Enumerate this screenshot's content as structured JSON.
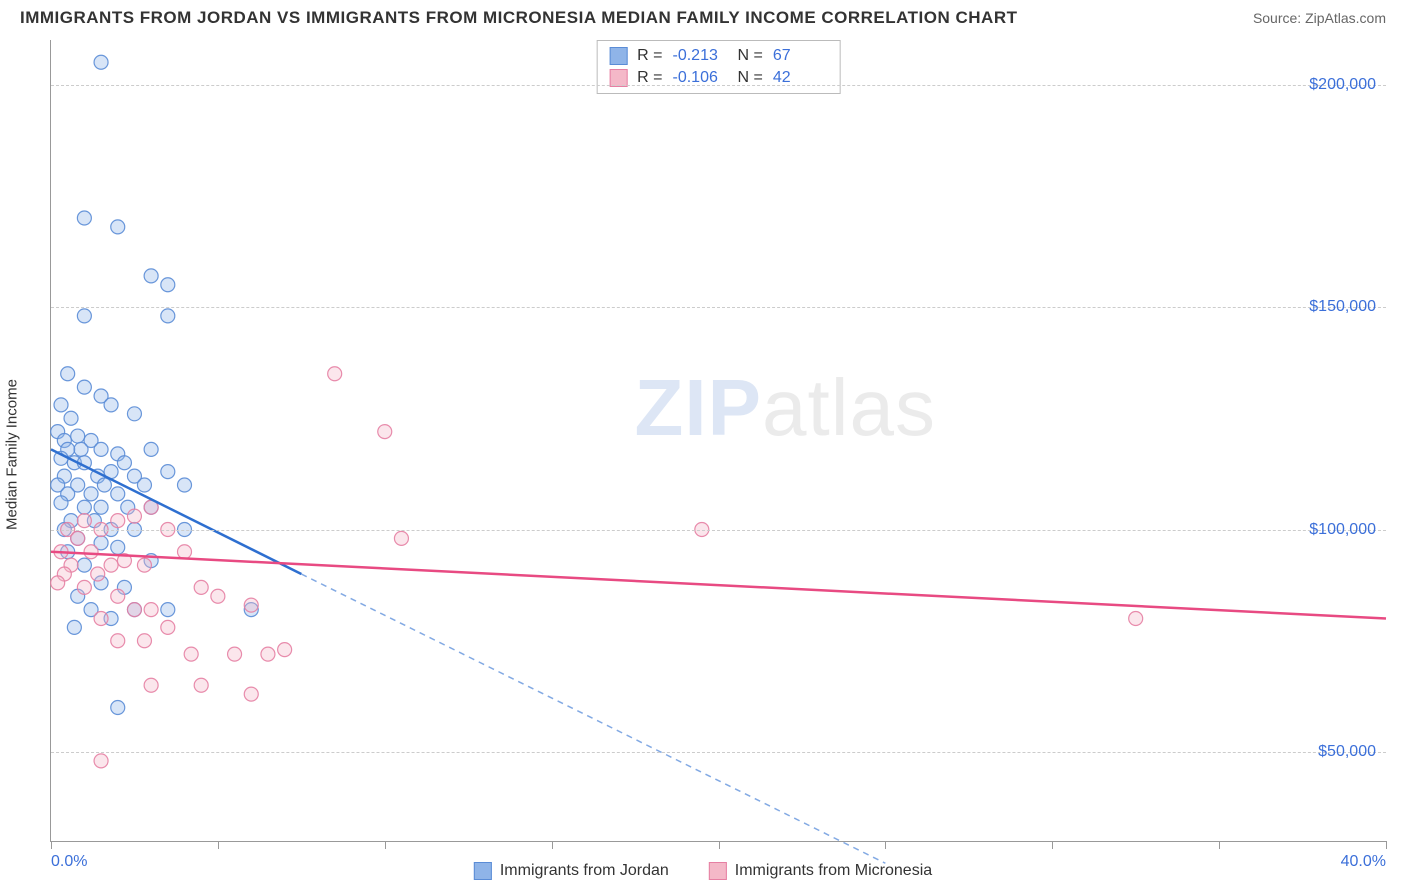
{
  "title": "IMMIGRANTS FROM JORDAN VS IMMIGRANTS FROM MICRONESIA MEDIAN FAMILY INCOME CORRELATION CHART",
  "source_label": "Source: ",
  "source_value": "ZipAtlas.com",
  "y_axis_label": "Median Family Income",
  "watermark_zip": "ZIP",
  "watermark_atlas": "atlas",
  "chart": {
    "type": "scatter",
    "xlim": [
      0,
      40
    ],
    "ylim": [
      30000,
      210000
    ],
    "x_tick_positions": [
      0,
      5,
      10,
      15,
      20,
      25,
      30,
      35,
      40
    ],
    "x_tick_labels_shown": {
      "0": "0.0%",
      "40": "40.0%"
    },
    "y_ticks": [
      50000,
      100000,
      150000,
      200000
    ],
    "y_tick_labels": [
      "$50,000",
      "$100,000",
      "$150,000",
      "$200,000"
    ],
    "grid_color": "#cccccc",
    "axis_color": "#999999",
    "background_color": "#ffffff",
    "tick_label_color": "#3b6fd9",
    "marker_radius": 7,
    "marker_fill_opacity": 0.35,
    "marker_stroke_opacity": 0.9,
    "line_width": 2.5
  },
  "series": [
    {
      "key": "jordan",
      "label": "Immigrants from Jordan",
      "color_fill": "#8fb4e8",
      "color_stroke": "#5a8cd6",
      "line_color": "#2e6fd0",
      "R": "-0.213",
      "N": "67",
      "trend": {
        "x1": 0,
        "y1": 118000,
        "x2": 7.5,
        "y2": 90000,
        "x2_ext": 25,
        "y2_ext": 25000
      },
      "points": [
        [
          1.5,
          205000
        ],
        [
          1.0,
          170000
        ],
        [
          2.0,
          168000
        ],
        [
          3.0,
          157000
        ],
        [
          3.5,
          155000
        ],
        [
          1.0,
          148000
        ],
        [
          3.5,
          148000
        ],
        [
          0.5,
          135000
        ],
        [
          1.0,
          132000
        ],
        [
          1.5,
          130000
        ],
        [
          0.3,
          128000
        ],
        [
          1.8,
          128000
        ],
        [
          2.5,
          126000
        ],
        [
          0.6,
          125000
        ],
        [
          0.2,
          122000
        ],
        [
          0.8,
          121000
        ],
        [
          0.4,
          120000
        ],
        [
          1.2,
          120000
        ],
        [
          0.5,
          118000
        ],
        [
          0.9,
          118000
        ],
        [
          1.5,
          118000
        ],
        [
          2.0,
          117000
        ],
        [
          0.3,
          116000
        ],
        [
          0.7,
          115000
        ],
        [
          1.0,
          115000
        ],
        [
          3.0,
          118000
        ],
        [
          2.2,
          115000
        ],
        [
          1.8,
          113000
        ],
        [
          0.4,
          112000
        ],
        [
          1.4,
          112000
        ],
        [
          2.5,
          112000
        ],
        [
          0.2,
          110000
        ],
        [
          0.8,
          110000
        ],
        [
          1.6,
          110000
        ],
        [
          2.8,
          110000
        ],
        [
          3.5,
          113000
        ],
        [
          0.5,
          108000
        ],
        [
          1.2,
          108000
        ],
        [
          2.0,
          108000
        ],
        [
          0.3,
          106000
        ],
        [
          1.0,
          105000
        ],
        [
          1.5,
          105000
        ],
        [
          2.3,
          105000
        ],
        [
          3.0,
          105000
        ],
        [
          4.0,
          110000
        ],
        [
          0.6,
          102000
        ],
        [
          1.3,
          102000
        ],
        [
          0.4,
          100000
        ],
        [
          1.8,
          100000
        ],
        [
          2.5,
          100000
        ],
        [
          0.8,
          98000
        ],
        [
          1.5,
          97000
        ],
        [
          2.0,
          96000
        ],
        [
          0.5,
          95000
        ],
        [
          4.0,
          100000
        ],
        [
          1.0,
          92000
        ],
        [
          3.0,
          93000
        ],
        [
          1.5,
          88000
        ],
        [
          2.2,
          87000
        ],
        [
          0.8,
          85000
        ],
        [
          1.2,
          82000
        ],
        [
          2.5,
          82000
        ],
        [
          3.5,
          82000
        ],
        [
          6.0,
          82000
        ],
        [
          1.8,
          80000
        ],
        [
          2.0,
          60000
        ],
        [
          0.7,
          78000
        ]
      ]
    },
    {
      "key": "micronesia",
      "label": "Immigrants from Micronesia",
      "color_fill": "#f4b8c8",
      "color_stroke": "#e67fa3",
      "line_color": "#e84a82",
      "R": "-0.106",
      "N": "42",
      "trend": {
        "x1": 0,
        "y1": 95000,
        "x2": 40,
        "y2": 80000
      },
      "points": [
        [
          8.5,
          135000
        ],
        [
          10.0,
          122000
        ],
        [
          10.5,
          98000
        ],
        [
          19.5,
          100000
        ],
        [
          32.5,
          80000
        ],
        [
          0.5,
          100000
        ],
        [
          1.0,
          102000
        ],
        [
          0.8,
          98000
        ],
        [
          1.5,
          100000
        ],
        [
          2.0,
          102000
        ],
        [
          2.5,
          103000
        ],
        [
          3.0,
          105000
        ],
        [
          1.2,
          95000
        ],
        [
          0.3,
          95000
        ],
        [
          0.6,
          92000
        ],
        [
          1.8,
          92000
        ],
        [
          2.2,
          93000
        ],
        [
          2.8,
          92000
        ],
        [
          3.5,
          100000
        ],
        [
          4.0,
          95000
        ],
        [
          0.4,
          90000
        ],
        [
          1.4,
          90000
        ],
        [
          0.2,
          88000
        ],
        [
          1.0,
          87000
        ],
        [
          2.0,
          85000
        ],
        [
          2.5,
          82000
        ],
        [
          3.0,
          82000
        ],
        [
          4.5,
          87000
        ],
        [
          5.0,
          85000
        ],
        [
          6.0,
          83000
        ],
        [
          1.5,
          80000
        ],
        [
          3.5,
          78000
        ],
        [
          2.0,
          75000
        ],
        [
          2.8,
          75000
        ],
        [
          4.2,
          72000
        ],
        [
          5.5,
          72000
        ],
        [
          6.5,
          72000
        ],
        [
          7.0,
          73000
        ],
        [
          3.0,
          65000
        ],
        [
          4.5,
          65000
        ],
        [
          6.0,
          63000
        ],
        [
          1.5,
          48000
        ]
      ]
    }
  ],
  "legend_top": {
    "R_label": "R =",
    "N_label": "N ="
  }
}
